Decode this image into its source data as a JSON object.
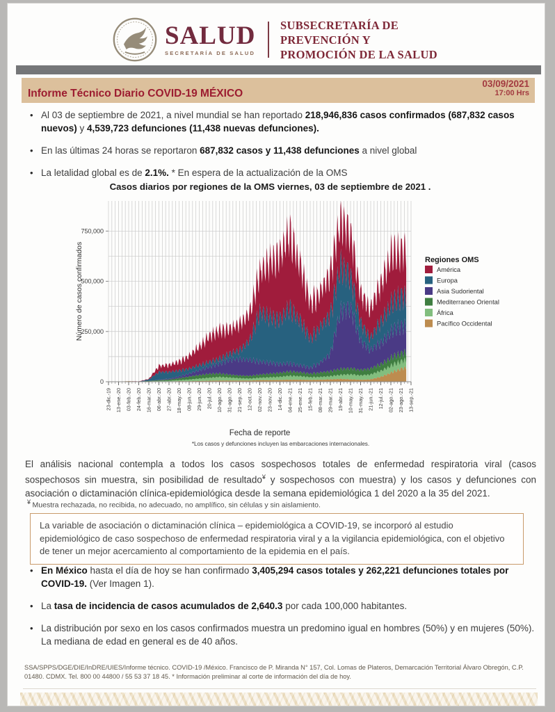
{
  "colors": {
    "guinda": "#7e2837",
    "title_red": "#9c1c30",
    "beige_band": "#dcc09c",
    "gray_bar": "#757678",
    "box_border": "#c89a6a"
  },
  "header": {
    "logo_word": "SALUD",
    "logo_sub": "SECRETARÍA DE SALUD",
    "subsecretaria_line1": "SUBSECRETARÍA DE PREVENCIÓN Y",
    "subsecretaria_line2": "PROMOCIÓN DE LA SALUD"
  },
  "titlebar": {
    "title": "Informe Técnico Diario COVID-19 MÉXICO",
    "date": "03/09/2021",
    "time": "17:00 Hrs"
  },
  "bullets_top": [
    [
      {
        "t": "Al 03 de septiembre de 2021, a nivel mundial se han reportado "
      },
      {
        "t": "218,946,836 casos confirmados (687,832 casos nuevos)",
        "b": true
      },
      {
        "t": " y "
      },
      {
        "t": "4,539,723 defunciones (11,438 nuevas defunciones).",
        "b": true
      }
    ],
    [
      {
        "t": "En las últimas 24 horas se reportaron "
      },
      {
        "t": "687,832 casos y 11,438 defunciones",
        "b": true
      },
      {
        "t": " a nivel global"
      }
    ],
    [
      {
        "t": "La letalidad global es de "
      },
      {
        "t": "2.1%.",
        "b": true
      },
      {
        "t": " * En espera de la actualización de la OMS"
      }
    ]
  ],
  "analysis_paragraph": [
    {
      "t": "El análisis nacional contempla a todos los casos sospechosos totales de enfermedad respiratoria viral (casos sospechosos sin muestra, sin posibilidad de resultado"
    },
    {
      "t": "¥",
      "sup": true
    },
    {
      "t": " y sospechosos con muestra) y los casos y defunciones con asociación o dictaminación clínica-epidemiológica desde la semana epidemiológica 1 del 2020 a la 35 del 2021."
    }
  ],
  "analysis_footnote": [
    {
      "t": "¥ ",
      "sup": true
    },
    {
      "t": "Muestra rechazada, no recibida, no adecuado, no amplífico, sin células y sin aislamiento."
    }
  ],
  "note_box": "La variable de asociación o dictaminación clínica – epidemiológica a COVID-19, se incorporó al estudio epidemiológico de caso sospechoso de enfermedad respiratoria viral y a la vigilancia epidemiológica, con el objetivo de tener un mejor acercamiento al comportamiento de la epidemia en el país.",
  "bullets_bottom": [
    [
      {
        "t": "En México",
        "b": true
      },
      {
        "t": " hasta el día de hoy se han confirmado "
      },
      {
        "t": "3,405,294 casos totales y 262,221 defunciones totales por COVID-19.",
        "b": true
      },
      {
        "t": " (Ver Imagen 1)."
      }
    ],
    [
      {
        "t": "La "
      },
      {
        "t": "tasa de incidencia de casos acumulados de 2,640.3",
        "b": true
      },
      {
        "t": " por cada 100,000 habitantes."
      }
    ],
    [
      {
        "t": "La distribución por sexo en los casos confirmados muestra un predomino igual en hombres (50%) y en mujeres (50%). La mediana de edad en general es de 40 años."
      }
    ]
  ],
  "footer": {
    "line": "SSA/SPPS/DGE/DIE/InDRE/UIES/Informe técnico. COVID-19 /México. Francisco de P. Miranda N° 157, Col. Lomas de Plateros, Demarcación Territorial Álvaro Obregón, C.P. 01480. CDMX. Tel. 800 00 44800 / 55 53 37 18 45. * Información preliminar al corte de información del día de hoy."
  },
  "chart_data": {
    "type": "stacked-bar",
    "title": "Casos diarios por regiones de la OMS viernes, 03 de septiembre de 2021 .",
    "xlabel": "Fecha de reporte",
    "ylabel": "Número de casos confirmados",
    "footnote": "*Los casos y defunciones incluyen las embarcaciones internacionales.",
    "legend_title": "Regiones OMS",
    "legend_position": "right",
    "grid": true,
    "ylim": [
      0,
      900000
    ],
    "yticks": [
      0,
      250000,
      500000,
      750000
    ],
    "ytick_labels": [
      "0",
      "250,000",
      "500,000",
      "750,000"
    ],
    "grid_minor_step": 125000,
    "x_tick_labels": [
      "23-dic.-19",
      "13-ene.-20",
      "03-feb.-20",
      "24-feb.-20",
      "16-mar.-20",
      "06-abr.-20",
      "27-abr.-20",
      "18-may.-20",
      "08-jun.-20",
      "29-jun.-20",
      "20-jul.-20",
      "10-ago.-20",
      "31-ago.-20",
      "21-sep.-20",
      "12-oct.-20",
      "02-nov.-20",
      "23-nov.-20",
      "14-dic.-20",
      "04-ene.-21",
      "25-ene.-21",
      "15-feb.-21",
      "08-mar.-21",
      "29-mar.-21",
      "19-abr.-21",
      "10-may.-21",
      "31-may.-21",
      "21-jun.-21",
      "12-jul.-21",
      "02-ago.-21",
      "23-ago.-21",
      "13-sep.-21"
    ],
    "days_per_tick": 21,
    "data_end_day": 620,
    "weekly_pattern": [
      1.07,
      1.1,
      1.03,
      0.96,
      0.88,
      0.84,
      0.97
    ],
    "values_note": "daily new confirmed cases, in thousands, estimated at each x tick date (stack bottom→top is reverse of this legend order)",
    "series": [
      {
        "name": "América",
        "color": "#A01C3C",
        "values_k": [
          0,
          0,
          0,
          1,
          3,
          30,
          35,
          45,
          65,
          95,
          130,
          145,
          125,
          135,
          140,
          200,
          275,
          330,
          380,
          285,
          180,
          175,
          210,
          235,
          215,
          150,
          150,
          190,
          250,
          230,
          250
        ]
      },
      {
        "name": "Europa",
        "color": "#27617F",
        "values_k": [
          0,
          0,
          0,
          0,
          8,
          40,
          35,
          30,
          25,
          25,
          25,
          25,
          30,
          45,
          100,
          250,
          230,
          230,
          280,
          230,
          150,
          180,
          200,
          230,
          160,
          90,
          60,
          110,
          140,
          150,
          150
        ]
      },
      {
        "name": "Asia Sudoriental",
        "color": "#4A3A85",
        "values_k": [
          0,
          0,
          0,
          0,
          0,
          2,
          4,
          8,
          15,
          25,
          35,
          50,
          75,
          85,
          80,
          65,
          55,
          45,
          40,
          35,
          30,
          50,
          90,
          290,
          310,
          150,
          95,
          110,
          130,
          140,
          130
        ]
      },
      {
        "name": "Mediterraneo Oriental",
        "color": "#3F7E41",
        "values_k": [
          0,
          0,
          0,
          0,
          2,
          4,
          6,
          10,
          15,
          18,
          20,
          18,
          15,
          14,
          14,
          16,
          18,
          20,
          22,
          20,
          18,
          22,
          25,
          30,
          30,
          28,
          30,
          35,
          40,
          40,
          40
        ]
      },
      {
        "name": "África",
        "color": "#82BE7E",
        "values_k": [
          0,
          0,
          0,
          0,
          0,
          2,
          3,
          5,
          8,
          12,
          15,
          18,
          15,
          12,
          10,
          12,
          14,
          16,
          20,
          18,
          14,
          14,
          16,
          20,
          25,
          22,
          25,
          30,
          35,
          38,
          40
        ]
      },
      {
        "name": "Pacífico Occidental",
        "color": "#BD8C4F",
        "values_k": [
          0,
          1,
          3,
          1,
          2,
          2,
          2,
          3,
          3,
          4,
          5,
          6,
          6,
          6,
          6,
          8,
          8,
          9,
          10,
          10,
          9,
          10,
          12,
          14,
          12,
          10,
          12,
          25,
          45,
          65,
          80
        ]
      }
    ]
  }
}
